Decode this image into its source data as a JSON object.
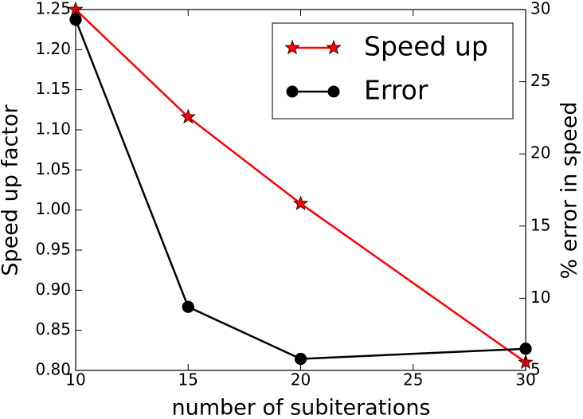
{
  "chart_data": {
    "type": "line",
    "x": [
      10,
      15,
      20,
      30
    ],
    "xlabel": "number of subiterations",
    "ylabel": "Speed up factor",
    "y2label": "% error in speed",
    "xlim": [
      10,
      30
    ],
    "xticks": [
      10,
      15,
      20,
      25,
      30
    ],
    "ylim": [
      0.8,
      1.25
    ],
    "yticks": [
      {
        "value": 0.8,
        "label": "0.80"
      },
      0.85,
      {
        "value": 0.9,
        "label": "0.90"
      },
      0.95,
      {
        "value": 1.0,
        "label": "1.00"
      },
      1.05,
      {
        "value": 1.1,
        "label": "1.10"
      },
      1.15,
      {
        "value": 1.2,
        "label": "1.20"
      },
      1.25
    ],
    "y2lim": [
      5,
      30
    ],
    "y2ticks": [
      5,
      10,
      15,
      20,
      25,
      30
    ],
    "legend": "upper right",
    "series": [
      {
        "name": "Speed up",
        "color": "#ff0000",
        "marker": "star",
        "values": [
          1.25,
          1.116,
          1.008,
          0.81
        ]
      },
      {
        "name": "Error",
        "color": "#000000",
        "marker": "circle",
        "axis": "y2",
        "values": [
          29.3,
          9.4,
          5.8,
          6.5
        ]
      }
    ]
  }
}
